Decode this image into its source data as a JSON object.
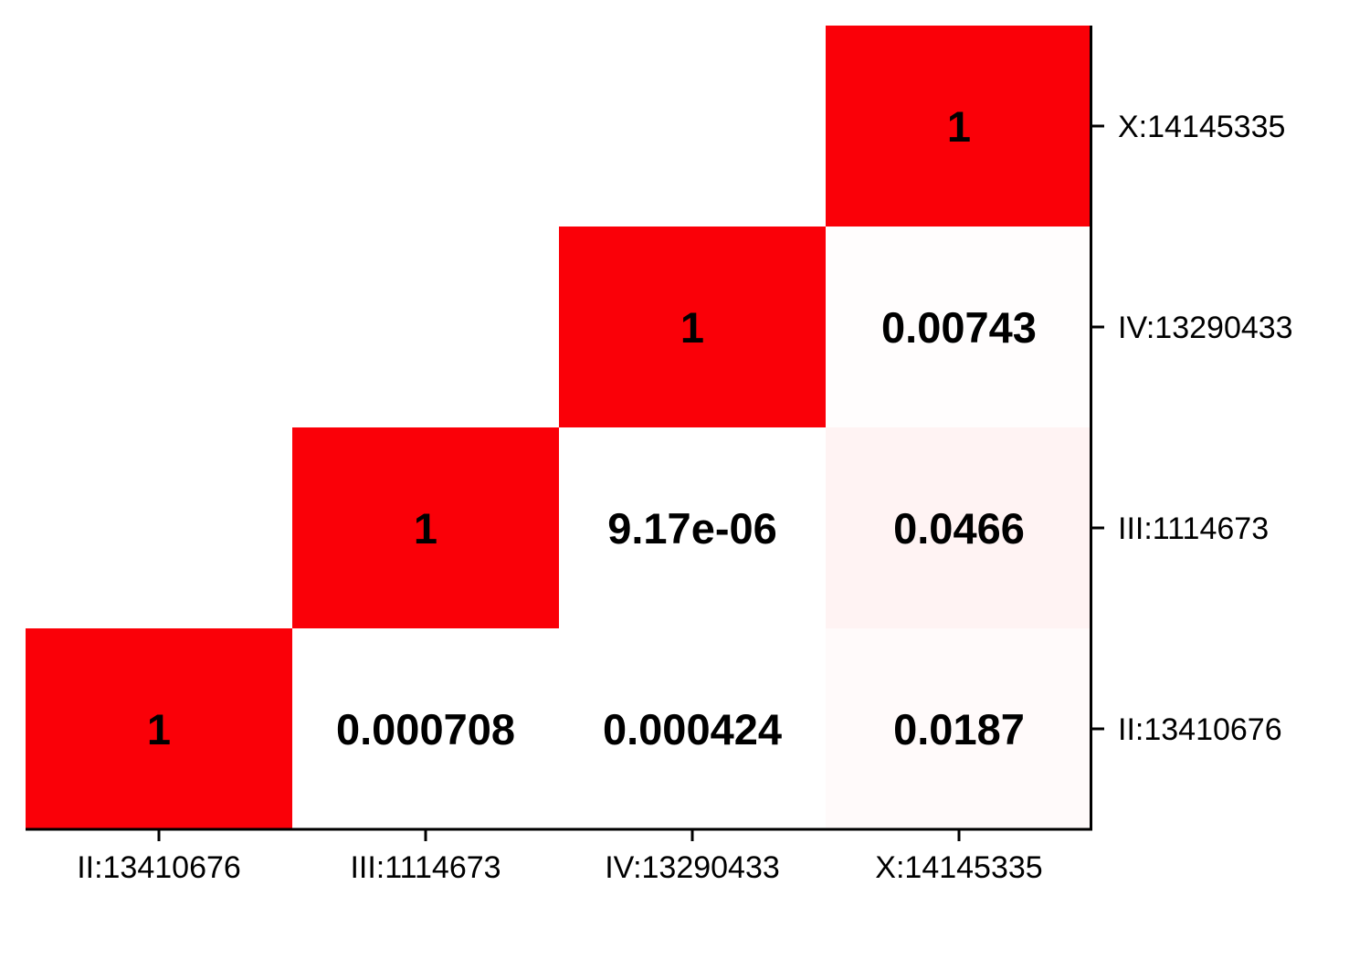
{
  "chart_data": {
    "type": "heatmap",
    "x_categories": [
      "II:13410676",
      "III:1114673",
      "IV:13290433",
      "X:14145335"
    ],
    "y_categories": [
      "II:13410676",
      "III:1114673",
      "IV:13290433",
      "X:14145335"
    ],
    "y_axis_side": "right",
    "cells": [
      {
        "row": "II:13410676",
        "col": "II:13410676",
        "value": 1,
        "label": "1"
      },
      {
        "row": "II:13410676",
        "col": "III:1114673",
        "value": 0.000708,
        "label": "0.000708"
      },
      {
        "row": "II:13410676",
        "col": "IV:13290433",
        "value": 0.000424,
        "label": "0.000424"
      },
      {
        "row": "II:13410676",
        "col": "X:14145335",
        "value": 0.0187,
        "label": "0.0187"
      },
      {
        "row": "III:1114673",
        "col": "III:1114673",
        "value": 1,
        "label": "1"
      },
      {
        "row": "III:1114673",
        "col": "IV:13290433",
        "value": 9.17e-06,
        "label": "9.17e-06"
      },
      {
        "row": "III:1114673",
        "col": "X:14145335",
        "value": 0.0466,
        "label": "0.0466"
      },
      {
        "row": "IV:13290433",
        "col": "IV:13290433",
        "value": 1,
        "label": "1"
      },
      {
        "row": "IV:13290433",
        "col": "X:14145335",
        "value": 0.00743,
        "label": "0.00743"
      },
      {
        "row": "X:14145335",
        "col": "X:14145335",
        "value": 1,
        "label": "1"
      }
    ],
    "color_low": "#ffffff",
    "color_high": "#fa0008",
    "grid": false,
    "legend": "none"
  }
}
